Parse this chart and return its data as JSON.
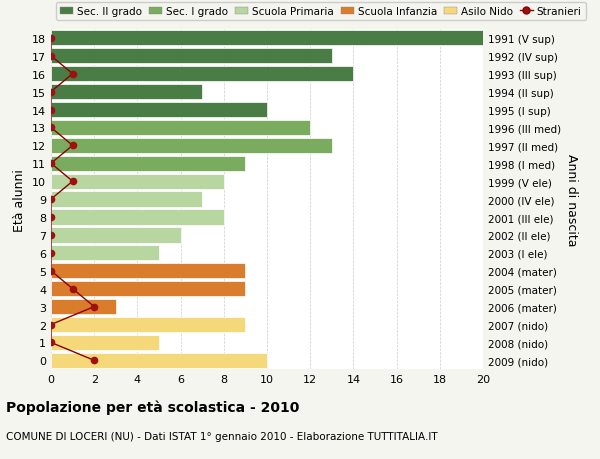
{
  "ages": [
    18,
    17,
    16,
    15,
    14,
    13,
    12,
    11,
    10,
    9,
    8,
    7,
    6,
    5,
    4,
    3,
    2,
    1,
    0
  ],
  "years": [
    "1991 (V sup)",
    "1992 (IV sup)",
    "1993 (III sup)",
    "1994 (II sup)",
    "1995 (I sup)",
    "1996 (III med)",
    "1997 (II med)",
    "1998 (I med)",
    "1999 (V ele)",
    "2000 (IV ele)",
    "2001 (III ele)",
    "2002 (II ele)",
    "2003 (I ele)",
    "2004 (mater)",
    "2005 (mater)",
    "2006 (mater)",
    "2007 (nido)",
    "2008 (nido)",
    "2009 (nido)"
  ],
  "bar_values": [
    20,
    13,
    14,
    7,
    10,
    12,
    13,
    9,
    8,
    7,
    8,
    6,
    5,
    9,
    9,
    3,
    9,
    5,
    10
  ],
  "bar_colors": [
    "#4a7c45",
    "#4a7c45",
    "#4a7c45",
    "#4a7c45",
    "#4a7c45",
    "#7aab5e",
    "#7aab5e",
    "#7aab5e",
    "#b8d6a0",
    "#b8d6a0",
    "#b8d6a0",
    "#b8d6a0",
    "#b8d6a0",
    "#d97c2b",
    "#d97c2b",
    "#d97c2b",
    "#f5d87a",
    "#f5d87a",
    "#f5d87a"
  ],
  "stranieri_x": [
    0,
    0,
    1,
    0,
    0,
    0,
    1,
    0,
    1,
    0,
    0,
    0,
    0,
    0,
    1,
    2,
    0,
    0,
    2
  ],
  "legend_labels": [
    "Sec. II grado",
    "Sec. I grado",
    "Scuola Primaria",
    "Scuola Infanzia",
    "Asilo Nido",
    "Stranieri"
  ],
  "legend_colors": [
    "#4a7c45",
    "#7aab5e",
    "#b8d6a0",
    "#d97c2b",
    "#f5d87a",
    "#b22222"
  ],
  "ylabel_left": "Età alunni",
  "ylabel_right": "Anni di nascita",
  "title": "Popolazione per età scolastica - 2010",
  "subtitle": "COMUNE DI LOCERI (NU) - Dati ISTAT 1° gennaio 2010 - Elaborazione TUTTITALIA.IT",
  "xlim": [
    0,
    20
  ],
  "xticks": [
    0,
    2,
    4,
    6,
    8,
    10,
    12,
    14,
    16,
    18,
    20
  ],
  "bg_color": "#f5f5f0",
  "plot_bg": "#ffffff",
  "stranieri_line_color": "#8b0000",
  "stranieri_marker_color": "#a01010"
}
